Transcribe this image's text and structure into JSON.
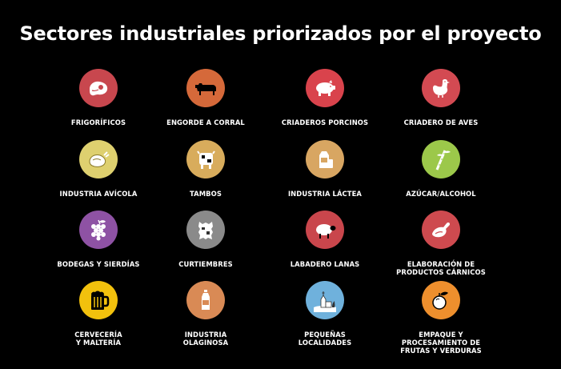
{
  "title": "Sectores industriales priorizados por el proyecto",
  "sectors": [
    {
      "label": "FRIGORÍFICOS",
      "icon": "steak-icon",
      "color": "#c8474e"
    },
    {
      "label": "ENGORDE A CORRAL",
      "icon": "cow-icon",
      "color": "#d5693a"
    },
    {
      "label": "CRIADEROS PORCINOS",
      "icon": "pig-icon",
      "color": "#d9434c"
    },
    {
      "label": "CRIADERO DE AVES",
      "icon": "chicken-icon",
      "color": "#d34a52"
    },
    {
      "label": "INDUSTRIA AVÍCOLA",
      "icon": "roast-chicken-icon",
      "color": "#ded06f"
    },
    {
      "label": "TAMBOS",
      "icon": "dairy-cow-icon",
      "color": "#d8ac5c"
    },
    {
      "label": "INDUSTRIA LÁCTEA",
      "icon": "milk-carton-icon",
      "color": "#d8a662"
    },
    {
      "label": "AZÚCAR/ALCOHOL",
      "icon": "sugarcane-icon",
      "color": "#9cc84a"
    },
    {
      "label": "BODEGAS Y SIERDÍAS",
      "icon": "grapes-icon",
      "color": "#8e52a4"
    },
    {
      "label": "CURTIEMBRES",
      "icon": "leather-hide-icon",
      "color": "#8a8a8a"
    },
    {
      "label": "LABADERO LANAS",
      "icon": "sheep-icon",
      "color": "#c9464c"
    },
    {
      "label": "ELABORACIÓN DE\nPRODUCTOS CÁRNICOS",
      "icon": "ham-icon",
      "color": "#ce4a4f"
    },
    {
      "label": "CERVECERÍA\nY MALTERÍA",
      "icon": "beer-mug-icon",
      "color": "#f2c10d"
    },
    {
      "label": "INDUSTRIA\nOLAGINOSA",
      "icon": "oil-bottle-icon",
      "color": "#d98a55"
    },
    {
      "label": "PEQUEÑAS\nLOCALIDADES",
      "icon": "church-town-icon",
      "color": "#6fb1dc"
    },
    {
      "label": "EMPAQUE Y\nPROCESAMIENTO DE\nFRUTAS Y VERDURAS",
      "icon": "apple-icon",
      "color": "#ee8f2d"
    }
  ]
}
